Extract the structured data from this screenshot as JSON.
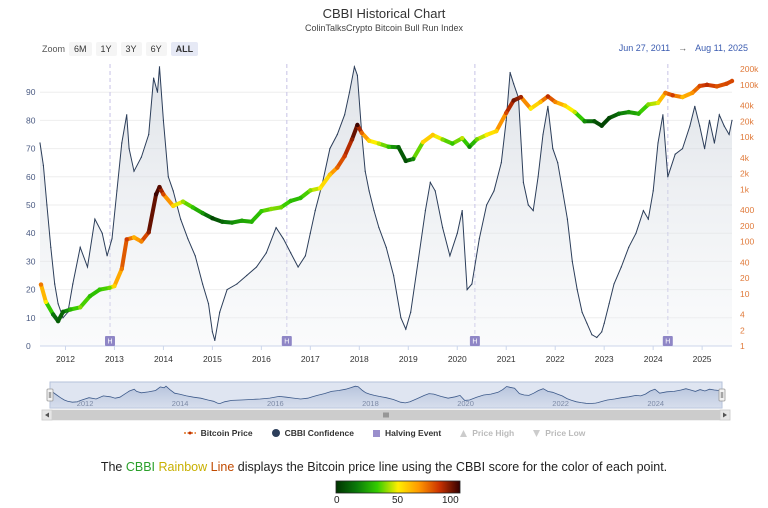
{
  "header": {
    "title": "CBBI Historical Chart",
    "subtitle": "ColinTalksCrypto Bitcoin Bull Run Index"
  },
  "zoom": {
    "label": "Zoom",
    "buttons": [
      "6M",
      "1Y",
      "3Y",
      "6Y",
      "ALL"
    ],
    "active": "ALL"
  },
  "range": {
    "from": "Jun 27, 2011",
    "arrow": "→",
    "to": "Aug 11, 2025"
  },
  "legend": [
    {
      "label": "Bitcoin Price",
      "active": true
    },
    {
      "label": "CBBI Confidence",
      "active": true
    },
    {
      "label": "Halving Event",
      "active": true
    },
    {
      "label": "Price High",
      "active": false
    },
    {
      "label": "Price Low",
      "active": false
    }
  ],
  "caption": {
    "pre": "The ",
    "cbbi": "CBBI",
    "rainbow": "Rainbow",
    "line": "Line",
    "post": " displays the Bitcoin price line using the CBBI score for the color of each point."
  },
  "colorbar": {
    "min": "0",
    "mid": "50",
    "max": "100",
    "colors": [
      "#003300",
      "#0a7a0a",
      "#33cc00",
      "#ffee00",
      "#ff9900",
      "#cc3300",
      "#330000"
    ]
  },
  "halving_marker": "H",
  "chart_data": {
    "type": "line",
    "x_range": [
      2011.48,
      2025.61
    ],
    "x_ticks": [
      "2012",
      "2013",
      "2014",
      "2015",
      "2016",
      "2017",
      "2018",
      "2019",
      "2020",
      "2021",
      "2022",
      "2023",
      "2024",
      "2025"
    ],
    "y_left_ticks": [
      "0",
      "10",
      "20",
      "30",
      "40",
      "50",
      "60",
      "70",
      "80",
      "90"
    ],
    "y_left_range": [
      0,
      100
    ],
    "y_right_ticks": [
      "1",
      "2",
      "4",
      "10",
      "20",
      "40",
      "100",
      "200",
      "400",
      "1k",
      "2k",
      "4k",
      "10k",
      "20k",
      "40k",
      "100k",
      "200k"
    ],
    "y_right_scale": "log",
    "y_right_range": [
      1,
      250000
    ],
    "halvings": [
      2012.91,
      2016.52,
      2020.36,
      2024.3
    ],
    "navigator_ticks": [
      "2012",
      "2014",
      "2016",
      "2018",
      "2020",
      "2022",
      "2024"
    ],
    "series": [
      {
        "name": "CBBI Confidence",
        "x": [
          2011.48,
          2011.55,
          2011.62,
          2011.7,
          2011.78,
          2011.85,
          2011.95,
          2012.05,
          2012.15,
          2012.3,
          2012.45,
          2012.6,
          2012.75,
          2012.85,
          2012.95,
          2013.05,
          2013.15,
          2013.25,
          2013.3,
          2013.4,
          2013.55,
          2013.7,
          2013.8,
          2013.88,
          2013.92,
          2014.0,
          2014.1,
          2014.2,
          2014.35,
          2014.5,
          2014.65,
          2014.8,
          2014.92,
          2015.0,
          2015.05,
          2015.15,
          2015.3,
          2015.5,
          2015.7,
          2015.9,
          2016.1,
          2016.3,
          2016.45,
          2016.6,
          2016.75,
          2016.9,
          2017.0,
          2017.1,
          2017.25,
          2017.4,
          2017.55,
          2017.7,
          2017.8,
          2017.9,
          2017.96,
          2018.05,
          2018.12,
          2018.2,
          2018.3,
          2018.4,
          2018.55,
          2018.7,
          2018.85,
          2018.95,
          2019.05,
          2019.2,
          2019.35,
          2019.45,
          2019.55,
          2019.7,
          2019.85,
          2020.0,
          2020.1,
          2020.2,
          2020.3,
          2020.45,
          2020.6,
          2020.75,
          2020.9,
          2021.0,
          2021.08,
          2021.15,
          2021.25,
          2021.35,
          2021.45,
          2021.55,
          2021.65,
          2021.75,
          2021.85,
          2021.95,
          2022.05,
          2022.15,
          2022.25,
          2022.35,
          2022.45,
          2022.55,
          2022.65,
          2022.75,
          2022.85,
          2022.95,
          2023.0,
          2023.1,
          2023.2,
          2023.35,
          2023.5,
          2023.65,
          2023.8,
          2023.9,
          2024.0,
          2024.1,
          2024.2,
          2024.3,
          2024.45,
          2024.6,
          2024.75,
          2024.85,
          2024.95,
          2025.05,
          2025.15,
          2025.25,
          2025.35,
          2025.45,
          2025.55,
          2025.61
        ],
        "values": [
          72,
          64,
          50,
          35,
          22,
          15,
          10,
          12,
          22,
          35,
          28,
          45,
          40,
          32,
          38,
          55,
          72,
          82,
          70,
          62,
          67,
          75,
          95,
          90,
          99,
          80,
          60,
          55,
          45,
          38,
          32,
          22,
          15,
          5,
          2,
          12,
          20,
          22,
          25,
          28,
          33,
          42,
          38,
          33,
          28,
          32,
          40,
          48,
          58,
          70,
          75,
          82,
          90,
          99,
          96,
          75,
          62,
          55,
          48,
          42,
          35,
          25,
          10,
          6,
          12,
          30,
          48,
          58,
          55,
          42,
          32,
          40,
          48,
          20,
          22,
          38,
          50,
          55,
          65,
          80,
          97,
          93,
          88,
          58,
          50,
          48,
          60,
          75,
          85,
          70,
          65,
          55,
          45,
          30,
          20,
          12,
          8,
          4,
          3,
          5,
          8,
          15,
          22,
          28,
          35,
          40,
          48,
          45,
          55,
          72,
          82,
          60,
          68,
          70,
          78,
          85,
          78,
          70,
          80,
          72,
          82,
          78,
          75,
          80
        ],
        "color": "#2c3e5a"
      },
      {
        "name": "Bitcoin Price",
        "x": [
          2011.5,
          2011.6,
          2011.75,
          2011.85,
          2011.95,
          2012.1,
          2012.3,
          2012.5,
          2012.7,
          2012.9,
          2013.0,
          2013.15,
          2013.25,
          2013.4,
          2013.55,
          2013.7,
          2013.85,
          2013.92,
          2014.0,
          2014.2,
          2014.4,
          2014.6,
          2014.8,
          2015.0,
          2015.2,
          2015.4,
          2015.6,
          2015.8,
          2016.0,
          2016.2,
          2016.4,
          2016.6,
          2016.8,
          2017.0,
          2017.2,
          2017.4,
          2017.55,
          2017.7,
          2017.85,
          2017.96,
          2018.05,
          2018.2,
          2018.4,
          2018.6,
          2018.8,
          2018.95,
          2019.1,
          2019.3,
          2019.5,
          2019.7,
          2019.9,
          2020.1,
          2020.25,
          2020.4,
          2020.6,
          2020.8,
          2021.0,
          2021.15,
          2021.3,
          2021.5,
          2021.7,
          2021.85,
          2022.0,
          2022.2,
          2022.4,
          2022.6,
          2022.8,
          2022.95,
          2023.1,
          2023.3,
          2023.5,
          2023.7,
          2023.9,
          2024.1,
          2024.25,
          2024.4,
          2024.6,
          2024.8,
          2024.95,
          2025.1,
          2025.3,
          2025.5,
          2025.61
        ],
        "values": [
          15,
          7,
          4,
          3,
          4.5,
          5,
          5.5,
          9,
          12,
          13,
          14,
          30,
          110,
          120,
          100,
          150,
          800,
          1100,
          800,
          480,
          580,
          450,
          350,
          280,
          240,
          230,
          250,
          240,
          380,
          420,
          450,
          600,
          680,
          950,
          1050,
          1900,
          2600,
          4300,
          9000,
          17000,
          12000,
          8500,
          7500,
          6500,
          6400,
          3500,
          3800,
          8000,
          11000,
          9000,
          7500,
          9500,
          6500,
          9000,
          11000,
          13000,
          29000,
          50000,
          58000,
          35000,
          47000,
          60000,
          47000,
          40000,
          30000,
          20000,
          20000,
          16500,
          23000,
          28000,
          30000,
          28000,
          42000,
          45000,
          70000,
          63000,
          58000,
          70000,
          95000,
          100000,
          93000,
          105000,
          118000
        ],
        "cbbi": [
          72,
          50,
          15,
          10,
          12,
          28,
          40,
          30,
          32,
          38,
          55,
          72,
          82,
          62,
          70,
          90,
          99,
          96,
          80,
          55,
          42,
          32,
          22,
          5,
          12,
          20,
          25,
          28,
          33,
          40,
          38,
          30,
          30,
          40,
          50,
          58,
          75,
          82,
          90,
          99,
          75,
          55,
          45,
          32,
          12,
          6,
          20,
          55,
          58,
          40,
          32,
          45,
          20,
          38,
          50,
          55,
          80,
          93,
          88,
          50,
          60,
          85,
          70,
          55,
          45,
          20,
          8,
          4,
          5,
          15,
          22,
          28,
          40,
          48,
          72,
          82,
          60,
          68,
          80,
          85,
          78,
          80,
          80
        ]
      }
    ]
  }
}
